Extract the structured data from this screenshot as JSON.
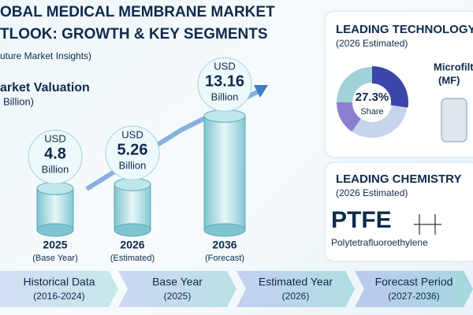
{
  "header": {
    "title_lines": [
      "OBAL MEDICAL MEMBRANE MARKET",
      "TLOOK: GROWTH & KEY SEGMENTS"
    ],
    "source": "uture Market Insights)"
  },
  "valuation": {
    "title": "arket Valuation",
    "unit_note": "Billion)",
    "items": [
      {
        "currency": "USD",
        "value": 4.8,
        "unit": "Billion",
        "year": "2025",
        "note": "(Base Year)"
      },
      {
        "currency": "USD",
        "value": 5.26,
        "unit": "Billion",
        "year": "2026",
        "note": "(Estimated)"
      },
      {
        "currency": "USD",
        "value": 13.16,
        "unit": "Billion",
        "year": "2036",
        "note": "(Forecast)"
      }
    ]
  },
  "technology": {
    "title": "LEADING TECHNOLOGY",
    "subtitle": "(2026 Estimated)",
    "share": {
      "value": 27.3,
      "label": "27.3%"
    },
    "share_caption": "Share",
    "segment_lines": [
      "Microfilt",
      "(MF)"
    ]
  },
  "chemistry": {
    "title": "LEADING CHEMISTRY",
    "subtitle": "(2026 Estimated)",
    "name": "PTFE",
    "full_name": "Polytetrafluoroethylene"
  },
  "timeline": [
    {
      "label": "Historical Data",
      "period": "(2016-2024)"
    },
    {
      "label": "Base Year",
      "period": "(2025)"
    },
    {
      "label": "Estimated Year",
      "period": "(2026)"
    },
    {
      "label": "Forecast Period",
      "period": "(2027-2036)"
    }
  ]
}
